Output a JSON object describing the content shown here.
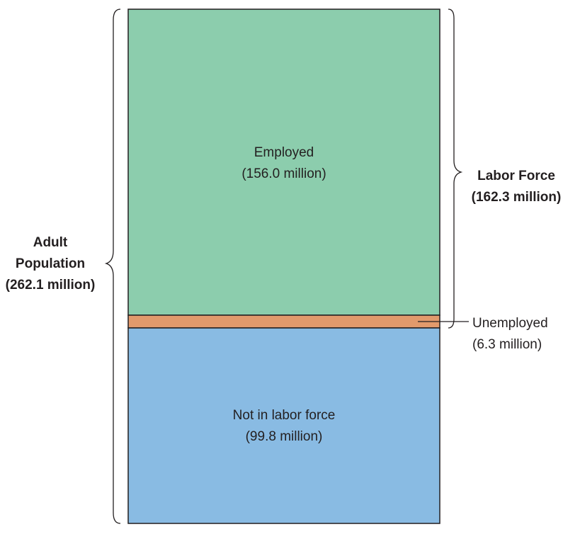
{
  "colors": {
    "employed": "#8ccdad",
    "unemployed": "#e29a6c",
    "not_in_labor_force": "#89bbe3",
    "outline": "#231f20"
  },
  "segments": {
    "employed": {
      "name": "Employed",
      "value_label": "(156.0 million)",
      "value": 156.0
    },
    "unemployed": {
      "name": "Unemployed",
      "value_label": "(6.3 million)",
      "value": 6.3
    },
    "not_in_labor_force": {
      "name": "Not in labor force",
      "value_label": "(99.8 million)",
      "value": 99.8
    }
  },
  "labor_force": {
    "title": "Labor Force",
    "value_label": "(162.3 million)",
    "value": 162.3
  },
  "adult_population": {
    "title_line1": "Adult",
    "title_line2": "Population",
    "value_label": "(262.1 million)",
    "value": 262.1
  }
}
